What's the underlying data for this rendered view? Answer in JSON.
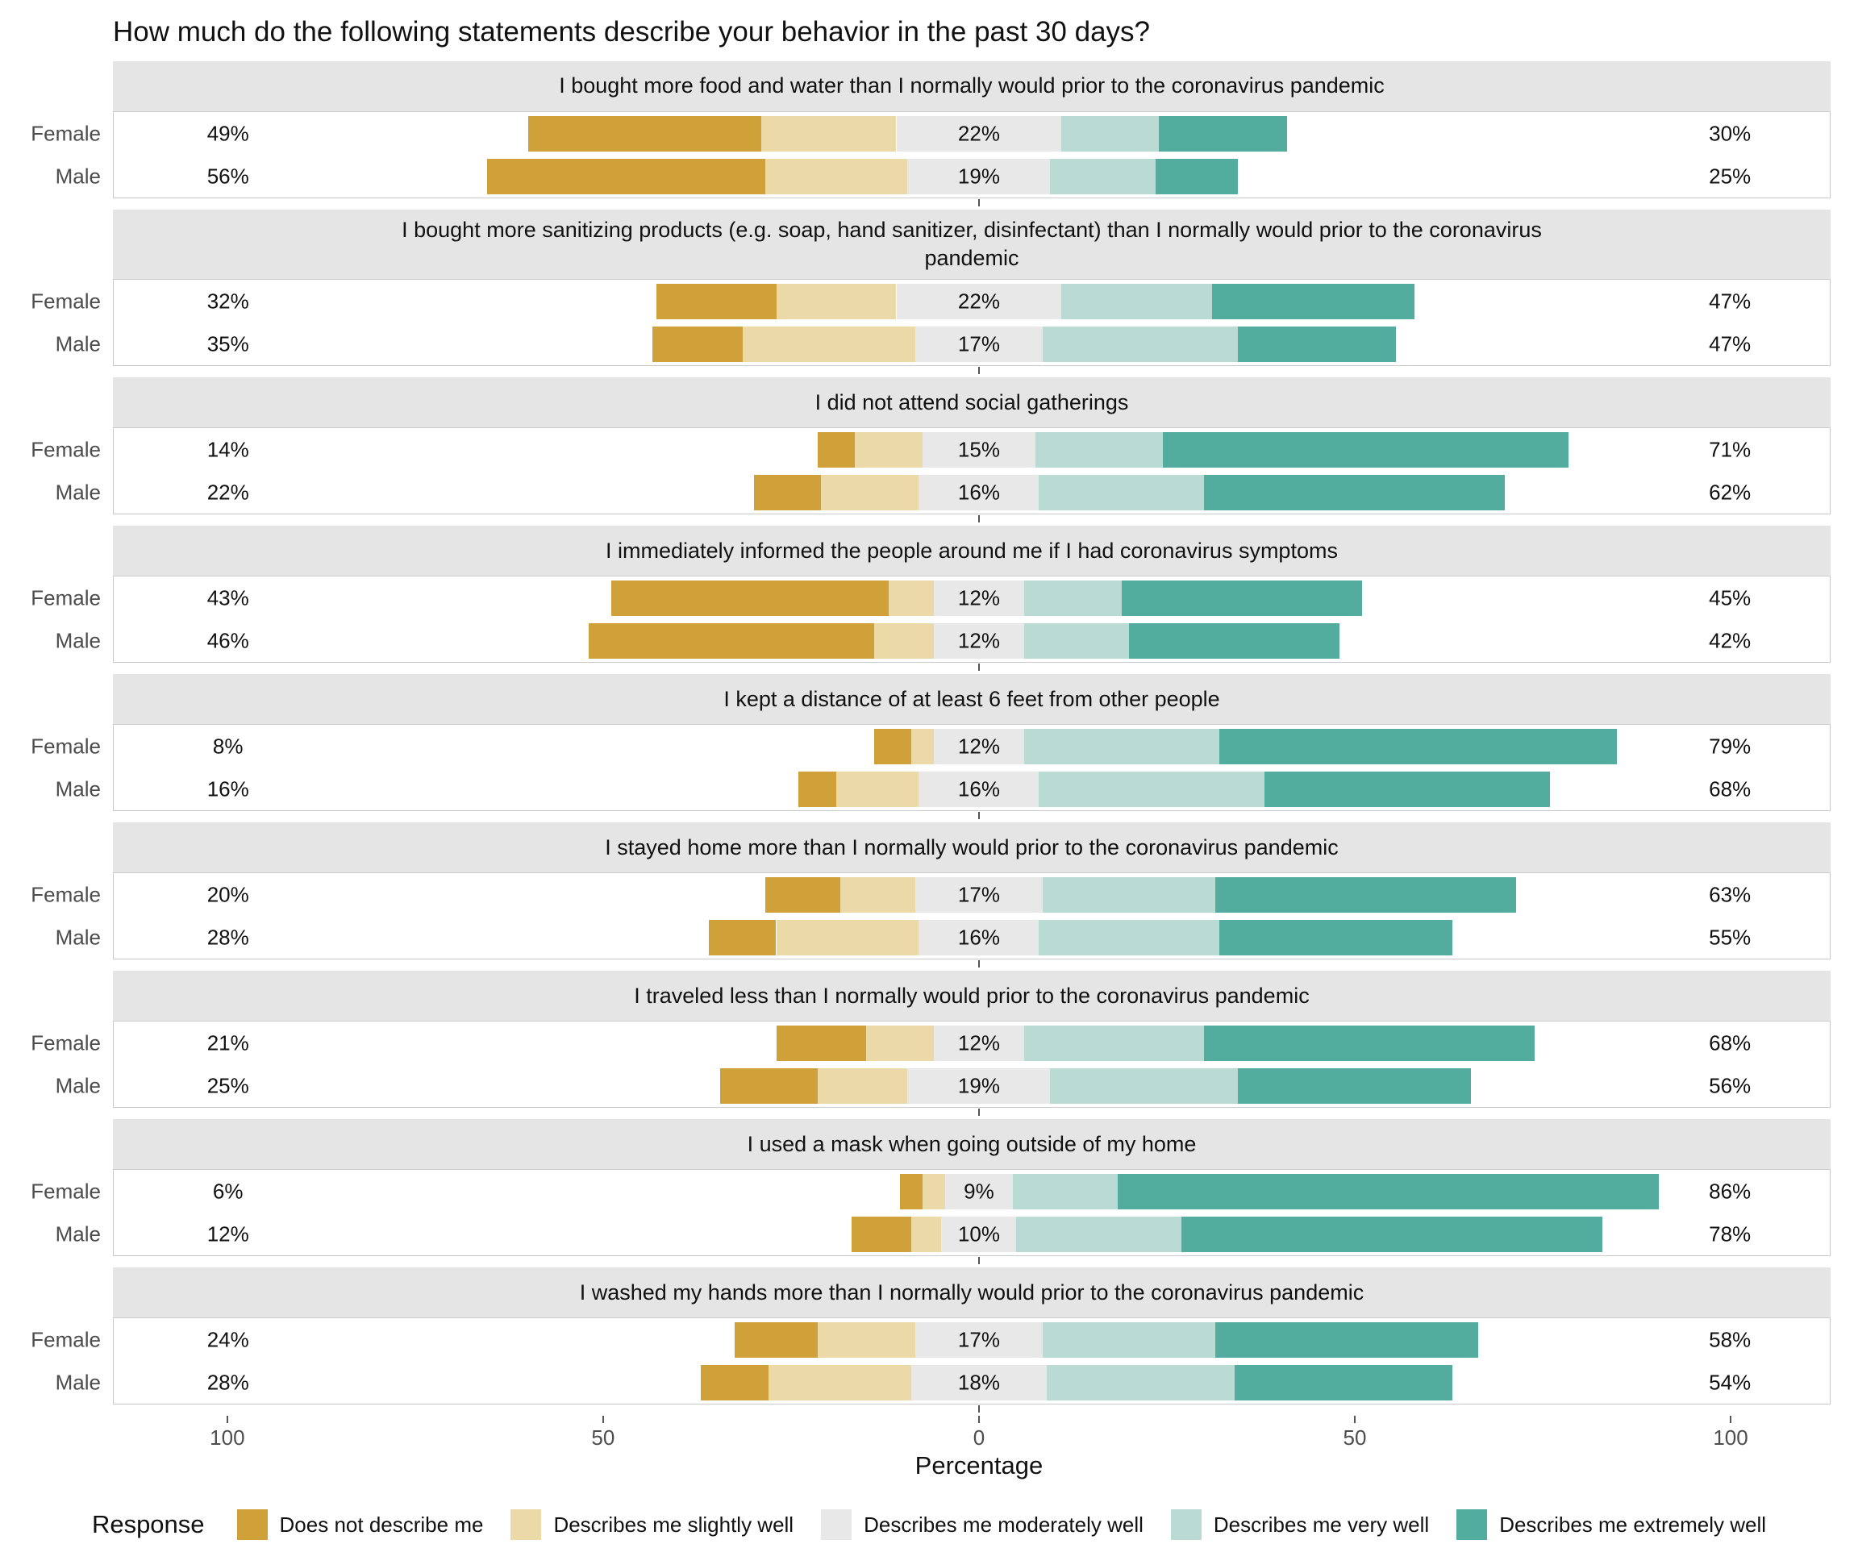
{
  "title": "How much do the following statements describe your behavior in the past 30 days?",
  "axis": {
    "label": "Percentage",
    "tick_labels": [
      "100",
      "50",
      "0",
      "50",
      "100"
    ]
  },
  "legend": {
    "title": "Response",
    "items": [
      {
        "label": "Does not describe me",
        "color": "#d1a139"
      },
      {
        "label": "Describes me slightly well",
        "color": "#ebd9a7"
      },
      {
        "label": "Describes me moderately well",
        "color": "#e8e8e8"
      },
      {
        "label": "Describes me very well",
        "color": "#badbd3"
      },
      {
        "label": "Describes me extremely well",
        "color": "#52ad9e"
      }
    ]
  },
  "chart_data": {
    "type": "bar",
    "subtype": "diverging-stacked-likert",
    "unit": "percent",
    "xlabel": "Percentage",
    "xlim": [
      -115,
      115
    ],
    "x_ticks": [
      {
        "label": "100",
        "value": -100
      },
      {
        "label": "50",
        "value": -50
      },
      {
        "label": "0",
        "value": 0
      },
      {
        "label": "50",
        "value": 50
      },
      {
        "label": "100",
        "value": 100
      }
    ],
    "categories": [
      "Does not describe me",
      "Describes me slightly well",
      "Describes me moderately well",
      "Describes me very well",
      "Describes me extremely well"
    ],
    "groups": [
      "Female",
      "Male"
    ],
    "panels": [
      {
        "statement": "I bought more food and water than I normally would prior to the coronavirus pandemic",
        "rows": [
          {
            "group": "Female",
            "left_label": "49%",
            "mid_label": "22%",
            "right_label": "30%",
            "segments": [
              31,
              18,
              22,
              13,
              17
            ]
          },
          {
            "group": "Male",
            "left_label": "56%",
            "mid_label": "19%",
            "right_label": "25%",
            "segments": [
              37,
              19,
              19,
              14,
              11
            ]
          }
        ]
      },
      {
        "statement": "I bought more sanitizing products (e.g. soap, hand sanitizer, disinfectant) than I normally would prior to the coronavirus pandemic",
        "rows": [
          {
            "group": "Female",
            "left_label": "32%",
            "mid_label": "22%",
            "right_label": "47%",
            "segments": [
              16,
              16,
              22,
              20,
              27
            ]
          },
          {
            "group": "Male",
            "left_label": "35%",
            "mid_label": "17%",
            "right_label": "47%",
            "segments": [
              12,
              23,
              17,
              26,
              21
            ]
          }
        ]
      },
      {
        "statement": "I did not attend social gatherings",
        "rows": [
          {
            "group": "Female",
            "left_label": "14%",
            "mid_label": "15%",
            "right_label": "71%",
            "segments": [
              5,
              9,
              15,
              17,
              54
            ]
          },
          {
            "group": "Male",
            "left_label": "22%",
            "mid_label": "16%",
            "right_label": "62%",
            "segments": [
              9,
              13,
              16,
              22,
              40
            ]
          }
        ]
      },
      {
        "statement": "I immediately informed the people around me if I had coronavirus symptoms",
        "rows": [
          {
            "group": "Female",
            "left_label": "43%",
            "mid_label": "12%",
            "right_label": "45%",
            "segments": [
              37,
              6,
              12,
              13,
              32
            ]
          },
          {
            "group": "Male",
            "left_label": "46%",
            "mid_label": "12%",
            "right_label": "42%",
            "segments": [
              38,
              8,
              12,
              14,
              28
            ]
          }
        ]
      },
      {
        "statement": "I kept a distance of at least 6 feet from other people",
        "rows": [
          {
            "group": "Female",
            "left_label": "8%",
            "mid_label": "12%",
            "right_label": "79%",
            "segments": [
              5,
              3,
              12,
              26,
              53
            ]
          },
          {
            "group": "Male",
            "left_label": "16%",
            "mid_label": "16%",
            "right_label": "68%",
            "segments": [
              5,
              11,
              16,
              30,
              38
            ]
          }
        ]
      },
      {
        "statement": "I stayed home more than I normally would prior to the coronavirus pandemic",
        "rows": [
          {
            "group": "Female",
            "left_label": "20%",
            "mid_label": "17%",
            "right_label": "63%",
            "segments": [
              10,
              10,
              17,
              23,
              40
            ]
          },
          {
            "group": "Male",
            "left_label": "28%",
            "mid_label": "16%",
            "right_label": "55%",
            "segments": [
              9,
              19,
              16,
              24,
              31
            ]
          }
        ]
      },
      {
        "statement": "I traveled less than I normally would prior to the coronavirus pandemic",
        "rows": [
          {
            "group": "Female",
            "left_label": "21%",
            "mid_label": "12%",
            "right_label": "68%",
            "segments": [
              12,
              9,
              12,
              24,
              44
            ]
          },
          {
            "group": "Male",
            "left_label": "25%",
            "mid_label": "19%",
            "right_label": "56%",
            "segments": [
              13,
              12,
              19,
              25,
              31
            ]
          }
        ]
      },
      {
        "statement": "I used a mask when going outside of my home",
        "rows": [
          {
            "group": "Female",
            "left_label": "6%",
            "mid_label": "9%",
            "right_label": "86%",
            "segments": [
              3,
              3,
              9,
              14,
              72
            ]
          },
          {
            "group": "Male",
            "left_label": "12%",
            "mid_label": "10%",
            "right_label": "78%",
            "segments": [
              8,
              4,
              10,
              22,
              56
            ]
          }
        ]
      },
      {
        "statement": "I washed my hands more than I normally would prior to the coronavirus pandemic",
        "rows": [
          {
            "group": "Female",
            "left_label": "24%",
            "mid_label": "17%",
            "right_label": "58%",
            "segments": [
              11,
              13,
              17,
              23,
              35
            ]
          },
          {
            "group": "Male",
            "left_label": "28%",
            "mid_label": "18%",
            "right_label": "54%",
            "segments": [
              9,
              19,
              18,
              25,
              29
            ]
          }
        ]
      }
    ]
  }
}
